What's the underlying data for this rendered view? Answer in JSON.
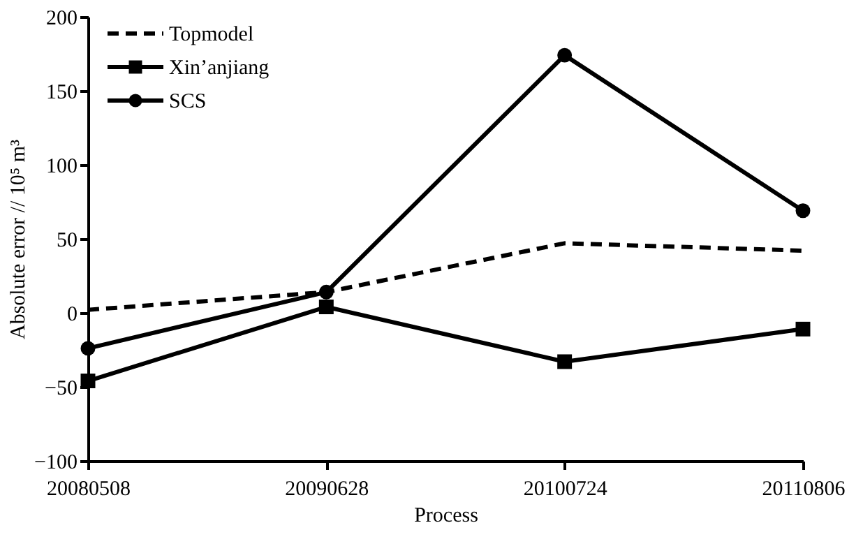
{
  "chart_data": {
    "type": "line",
    "xlabel": "Process",
    "ylabel": "Absolute error // 10⁵ m³",
    "categories": [
      "20080508",
      "20090628",
      "20100724",
      "20110806"
    ],
    "series": [
      {
        "name": "Topmodel",
        "color": "#000000",
        "values": [
          2,
          14,
          47,
          42
        ],
        "marker": "none",
        "line_style": "dashed"
      },
      {
        "name": "Xin’anjiang",
        "color": "#000000",
        "values": [
          -46,
          4,
          -33,
          -11
        ],
        "marker": "square",
        "line_style": "solid"
      },
      {
        "name": "SCS",
        "color": "#000000",
        "values": [
          -24,
          14,
          174,
          69
        ],
        "marker": "circle",
        "line_style": "solid"
      }
    ],
    "ylim": [
      -100,
      200
    ],
    "yticks": [
      -100,
      -50,
      0,
      50,
      100,
      150,
      200
    ],
    "grid": false,
    "legend": "top left"
  }
}
